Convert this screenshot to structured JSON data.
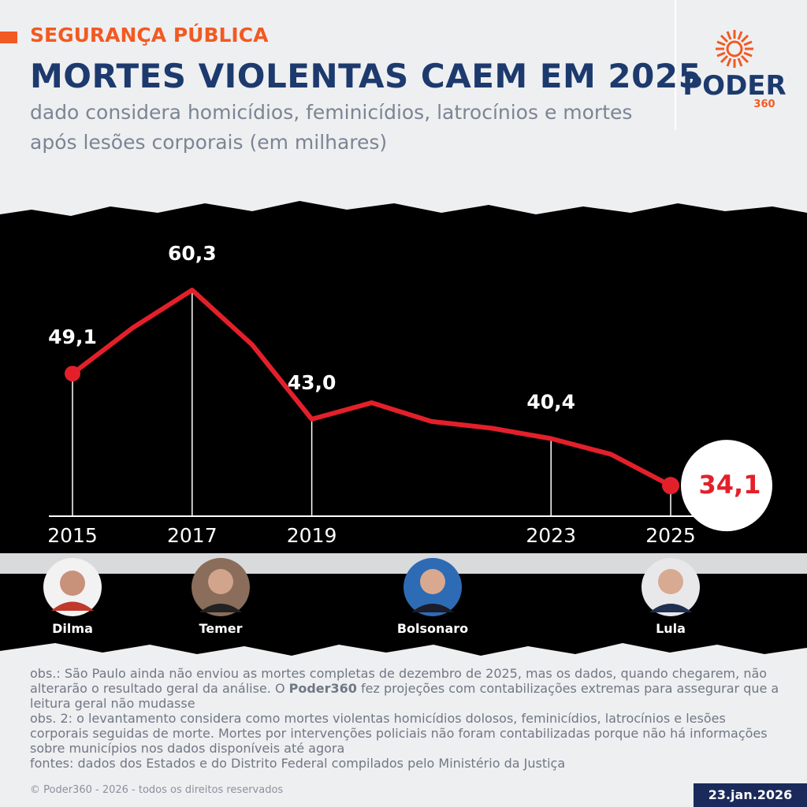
{
  "header": {
    "section": "SEGURANÇA PÚBLICA",
    "logo": "PODER",
    "logo_sub": "360"
  },
  "chart_data": {
    "type": "line",
    "title": "MORTES VIOLENTAS CAEM EM 2025",
    "subtitle": "dado considera homicídios, feminicídios, latrocínios e mortes após lesões corporais (em milhares)",
    "x": [
      2015,
      2016,
      2017,
      2018,
      2019,
      2020,
      2021,
      2022,
      2023,
      2024,
      2025
    ],
    "values": [
      49.1,
      55.2,
      60.3,
      53.0,
      43.0,
      45.2,
      42.7,
      41.8,
      40.4,
      38.3,
      34.1
    ],
    "value_labels": [
      "49,1",
      null,
      "60,3",
      null,
      "43,0",
      null,
      null,
      null,
      "40,4",
      null,
      "34,1"
    ],
    "color": "#e3202a",
    "xlim": [
      2015,
      2025
    ],
    "xticks": [
      2015,
      2017,
      2019,
      2023,
      2025
    ],
    "ylim": [
      30,
      64
    ]
  },
  "presidents": [
    "Dilma",
    "Temer",
    "Bolsonaro",
    "Lula"
  ],
  "notes": {
    "obs1_before": "obs.: São Paulo ainda não enviou as mortes completas de dezembro de 2025, mas os dados, quando chegarem, não alterarão o resultado geral da análise. O",
    "obs1_bold": "Poder360",
    "obs1_after": "fez projeções com contabilizações extremas para assegurar que a leitura geral não mudasse",
    "obs2": "obs. 2: o levantamento considera como mortes violentas homicídios dolosos, feminicídios, latrocínios e lesões corporais seguidas de morte. Mortes por intervenções policiais não foram contabilizadas porque não há informações sobre municípios nos dados disponíveis até agora",
    "sources": "fontes: dados dos Estados e do Distrito Federal compilados pelo Ministério da Justiça"
  },
  "footer": {
    "copyright": "© Poder360 - 2026 - todos os direitos reservados",
    "date": "23.jan.2026"
  }
}
